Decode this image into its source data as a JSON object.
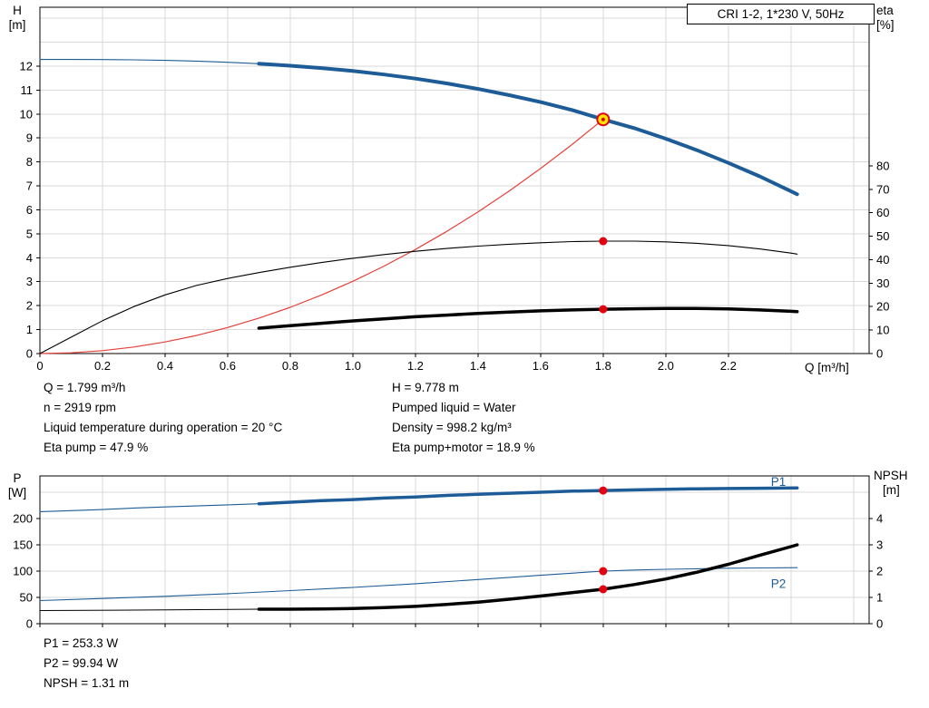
{
  "colors": {
    "curve_blue": "#1d5c96",
    "curve_black": "#000000",
    "curve_red": "#e5413a",
    "marker_red": "#e3000f",
    "marker_yellow": "#ffe600",
    "grid": "#d9d9d9",
    "axis": "#000000",
    "label_blue": "#1d5c96"
  },
  "info": {
    "top_left": [
      "Q = 1.799 m³/h",
      "n = 2919 rpm",
      "Liquid temperature during operation = 20 °C",
      "Eta pump = 47.9 %"
    ],
    "top_right": [
      "H = 9.778 m",
      "Pumped liquid = Water",
      "Density = 998.2 kg/m³",
      "Eta pump+motor = 18.9 %"
    ],
    "bottom": [
      "P1 = 253.3 W",
      "P2 = 99.94 W",
      "NPSH = 1.31 m"
    ]
  },
  "chart_data": [
    {
      "id": "hq-chart",
      "type": "line",
      "title": "CRI 1-2, 1*230 V, 50Hz",
      "x_axis": {
        "label": "Q [m³/h]",
        "min": 0,
        "max": 2.65,
        "ticks": [
          0,
          0.2,
          0.4,
          0.6,
          0.8,
          1.0,
          1.2,
          1.4,
          1.6,
          1.8,
          2.0,
          2.2
        ],
        "tick_labels": [
          "0",
          "0.2",
          "0.4",
          "0.6",
          "0.8",
          "1.0",
          "1.2",
          "1.4",
          "1.6",
          "1.8",
          "2.0",
          "2.2"
        ],
        "grid_extra": [
          2.4,
          2.6
        ]
      },
      "y_left": {
        "name": "H",
        "unit": "[m]",
        "min": 0,
        "max": 14.46,
        "ticks": [
          0,
          1,
          2,
          3,
          4,
          5,
          6,
          7,
          8,
          9,
          10,
          11,
          12
        ],
        "tick_labels": [
          "0",
          "1",
          "2",
          "3",
          "4",
          "5",
          "6",
          "7",
          "8",
          "9",
          "10",
          "11",
          "12"
        ],
        "grid_extra": [
          13,
          14
        ]
      },
      "y_right": {
        "name": "eta",
        "unit": "[%]",
        "min": 0,
        "max": 147.6,
        "ticks": [
          0,
          10,
          20,
          30,
          40,
          50,
          60,
          70,
          80
        ],
        "tick_labels": [
          "0",
          "10",
          "20",
          "30",
          "40",
          "50",
          "60",
          "70",
          "80"
        ]
      },
      "series": [
        {
          "name": "h-curve-thin",
          "axis": "left",
          "color": "curve_blue",
          "width": 1.1,
          "points": [
            [
              0,
              12.28
            ],
            [
              0.1,
              12.279
            ],
            [
              0.2,
              12.274
            ],
            [
              0.3,
              12.263
            ],
            [
              0.4,
              12.242
            ],
            [
              0.5,
              12.21
            ],
            [
              0.6,
              12.163
            ],
            [
              0.7,
              12.101
            ]
          ]
        },
        {
          "name": "h-curve",
          "axis": "left",
          "color": "curve_blue",
          "width": 4,
          "points": [
            [
              0.7,
              12.1
            ],
            [
              0.8,
              12.02
            ],
            [
              0.9,
              11.92
            ],
            [
              1.0,
              11.8
            ],
            [
              1.1,
              11.65
            ],
            [
              1.2,
              11.48
            ],
            [
              1.3,
              11.28
            ],
            [
              1.4,
              11.05
            ],
            [
              1.5,
              10.79
            ],
            [
              1.6,
              10.5
            ],
            [
              1.7,
              10.17
            ],
            [
              1.8,
              9.778
            ],
            [
              1.9,
              9.41
            ],
            [
              2.0,
              8.97
            ],
            [
              2.1,
              8.49
            ],
            [
              2.2,
              7.96
            ],
            [
              2.3,
              7.4
            ],
            [
              2.4,
              6.78
            ],
            [
              2.42,
              6.65
            ]
          ]
        },
        {
          "name": "system-curve",
          "axis": "left",
          "color": "curve_red",
          "width": 1.2,
          "points": [
            [
              0,
              0
            ],
            [
              0.1,
              0.03
            ],
            [
              0.2,
              0.121
            ],
            [
              0.3,
              0.272
            ],
            [
              0.4,
              0.483
            ],
            [
              0.5,
              0.754
            ],
            [
              0.6,
              1.086
            ],
            [
              0.7,
              1.479
            ],
            [
              0.8,
              1.931
            ],
            [
              0.9,
              2.445
            ],
            [
              1.0,
              3.018
            ],
            [
              1.1,
              3.652
            ],
            [
              1.2,
              4.346
            ],
            [
              1.3,
              5.1
            ],
            [
              1.4,
              5.915
            ],
            [
              1.5,
              6.79
            ],
            [
              1.6,
              7.726
            ],
            [
              1.7,
              8.722
            ],
            [
              1.8,
              9.778
            ]
          ]
        },
        {
          "name": "eta-pump",
          "axis": "right",
          "color": "curve_black",
          "width": 1.1,
          "points": [
            [
              0,
              0
            ],
            [
              0.1,
              7
            ],
            [
              0.2,
              14
            ],
            [
              0.3,
              20
            ],
            [
              0.4,
              25
            ],
            [
              0.5,
              29
            ],
            [
              0.6,
              32
            ],
            [
              0.7,
              34.5
            ],
            [
              0.8,
              36.8
            ],
            [
              0.9,
              38.8
            ],
            [
              1.0,
              40.6
            ],
            [
              1.1,
              42.2
            ],
            [
              1.2,
              43.6
            ],
            [
              1.3,
              44.8
            ],
            [
              1.4,
              45.8
            ],
            [
              1.5,
              46.6
            ],
            [
              1.6,
              47.2
            ],
            [
              1.7,
              47.7
            ],
            [
              1.8,
              47.9
            ],
            [
              1.9,
              47.9
            ],
            [
              2.0,
              47.6
            ],
            [
              2.1,
              47.0
            ],
            [
              2.2,
              46.0
            ],
            [
              2.3,
              44.6
            ],
            [
              2.4,
              42.8
            ],
            [
              2.42,
              42.4
            ]
          ]
        },
        {
          "name": "eta-pump-motor",
          "axis": "right",
          "color": "curve_black",
          "width": 3.5,
          "points": [
            [
              0.7,
              10.8
            ],
            [
              0.8,
              11.9
            ],
            [
              0.9,
              12.9
            ],
            [
              1.0,
              13.9
            ],
            [
              1.1,
              14.8
            ],
            [
              1.2,
              15.7
            ],
            [
              1.3,
              16.4
            ],
            [
              1.4,
              17.1
            ],
            [
              1.5,
              17.7
            ],
            [
              1.6,
              18.2
            ],
            [
              1.7,
              18.6
            ],
            [
              1.8,
              18.9
            ],
            [
              1.9,
              19.1
            ],
            [
              2.0,
              19.2
            ],
            [
              2.1,
              19.2
            ],
            [
              2.2,
              19.0
            ],
            [
              2.3,
              18.6
            ],
            [
              2.4,
              18.0
            ],
            [
              2.42,
              17.9
            ]
          ]
        }
      ],
      "markers": [
        {
          "q": 1.8,
          "v": 9.778,
          "axis": "left",
          "style": "duty"
        },
        {
          "q": 1.8,
          "v": 47.9,
          "axis": "right",
          "style": "dot"
        },
        {
          "q": 1.8,
          "v": 18.9,
          "axis": "right",
          "style": "dot"
        }
      ],
      "annotations": []
    },
    {
      "id": "p-npsh-chart",
      "type": "line",
      "title": "",
      "x_axis": {
        "label": "",
        "min": 0,
        "max": 2.65,
        "ticks": [
          0,
          0.2,
          0.4,
          0.6,
          0.8,
          1.0,
          1.2,
          1.4,
          1.6,
          1.8,
          2.0,
          2.2
        ],
        "tick_labels": [],
        "grid_extra": [
          2.4,
          2.6
        ]
      },
      "y_left": {
        "name": "P",
        "unit": "[W]",
        "min": 0,
        "max": 281,
        "ticks": [
          0,
          50,
          100,
          150,
          200
        ],
        "tick_labels": [
          "0",
          "50",
          "100",
          "150",
          "200"
        ],
        "grid_extra": [
          250
        ]
      },
      "y_right": {
        "name": "NPSH",
        "unit": "[m]",
        "min": 0,
        "max": 5.62,
        "ticks": [
          0,
          1,
          2,
          3,
          4
        ],
        "tick_labels": [
          "0",
          "1",
          "2",
          "3",
          "4"
        ]
      },
      "series": [
        {
          "name": "p1-thin",
          "axis": "left",
          "color": "curve_blue",
          "width": 1.1,
          "points": [
            [
              0,
              213
            ],
            [
              0.1,
              215
            ],
            [
              0.2,
              217
            ],
            [
              0.3,
              220
            ],
            [
              0.4,
              222
            ],
            [
              0.5,
              224
            ],
            [
              0.6,
              226
            ],
            [
              0.7,
              228
            ]
          ]
        },
        {
          "name": "p1",
          "axis": "left",
          "color": "curve_blue",
          "width": 3.5,
          "points": [
            [
              0.7,
              228
            ],
            [
              0.8,
              231
            ],
            [
              0.9,
              234
            ],
            [
              1.0,
              236
            ],
            [
              1.1,
              239
            ],
            [
              1.2,
              241
            ],
            [
              1.3,
              244
            ],
            [
              1.4,
              246
            ],
            [
              1.5,
              248
            ],
            [
              1.6,
              250
            ],
            [
              1.7,
              252
            ],
            [
              1.8,
              253.3
            ],
            [
              1.9,
              254.5
            ],
            [
              2.0,
              255.5
            ],
            [
              2.1,
              256.5
            ],
            [
              2.2,
              257
            ],
            [
              2.3,
              257.5
            ],
            [
              2.42,
              258
            ]
          ]
        },
        {
          "name": "p2",
          "axis": "left",
          "color": "curve_blue",
          "width": 1.1,
          "points": [
            [
              0,
              44
            ],
            [
              0.2,
              48
            ],
            [
              0.4,
              52
            ],
            [
              0.6,
              57
            ],
            [
              0.8,
              63
            ],
            [
              1.0,
              69
            ],
            [
              1.2,
              76
            ],
            [
              1.4,
              84
            ],
            [
              1.6,
              92
            ],
            [
              1.8,
              99.94
            ],
            [
              1.9,
              102
            ],
            [
              2.0,
              103.5
            ],
            [
              2.1,
              104.5
            ],
            [
              2.2,
              105.5
            ],
            [
              2.3,
              106
            ],
            [
              2.42,
              106.5
            ]
          ]
        },
        {
          "name": "npsh-thin",
          "axis": "right",
          "color": "curve_black",
          "width": 1,
          "points": [
            [
              0,
              0.5
            ],
            [
              0.35,
              0.52
            ],
            [
              0.7,
              0.55
            ]
          ]
        },
        {
          "name": "npsh",
          "axis": "right",
          "color": "curve_black",
          "width": 3.5,
          "points": [
            [
              0.7,
              0.55
            ],
            [
              0.8,
              0.55
            ],
            [
              0.9,
              0.56
            ],
            [
              1.0,
              0.58
            ],
            [
              1.1,
              0.61
            ],
            [
              1.2,
              0.66
            ],
            [
              1.3,
              0.73
            ],
            [
              1.4,
              0.82
            ],
            [
              1.5,
              0.93
            ],
            [
              1.6,
              1.05
            ],
            [
              1.7,
              1.18
            ],
            [
              1.8,
              1.31
            ],
            [
              1.9,
              1.49
            ],
            [
              2.0,
              1.7
            ],
            [
              2.1,
              1.96
            ],
            [
              2.2,
              2.26
            ],
            [
              2.3,
              2.6
            ],
            [
              2.4,
              2.93
            ],
            [
              2.42,
              3.0
            ]
          ]
        }
      ],
      "markers": [
        {
          "q": 1.8,
          "v": 253.3,
          "axis": "left",
          "style": "dot"
        },
        {
          "q": 1.8,
          "v": 99.94,
          "axis": "left",
          "style": "dot"
        },
        {
          "q": 1.8,
          "v": 1.31,
          "axis": "right",
          "style": "dot"
        }
      ],
      "annotations": [
        {
          "text": "P1",
          "q": 2.36,
          "v": 262,
          "axis": "left",
          "color": "label_blue"
        },
        {
          "text": "P2",
          "q": 2.36,
          "v": 68,
          "axis": "left",
          "color": "label_blue"
        }
      ]
    }
  ]
}
